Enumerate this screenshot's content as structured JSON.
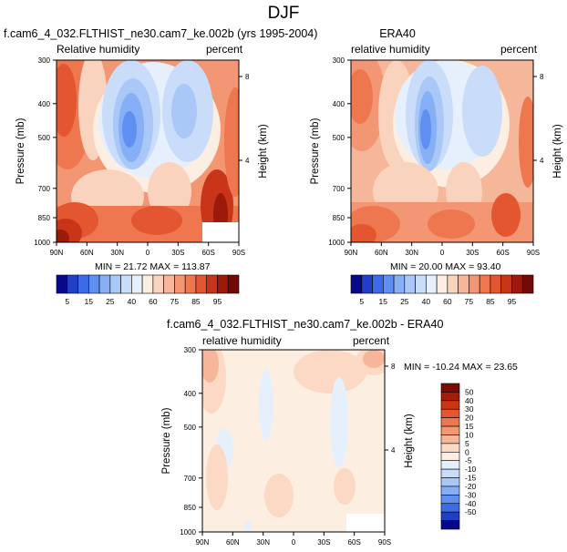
{
  "figure": {
    "season": "DJF"
  },
  "panels": [
    {
      "title": "f.cam6_4_032.FLTHIST_ne30.cam7_ke.002b (yrs 1995-2004)",
      "left_label": "Relative humidity",
      "right_label": "percent",
      "stats": "MIN = 21.72  MAX = 113.87"
    },
    {
      "title": "ERA40",
      "left_label": "relative humidity",
      "right_label": "percent",
      "stats": "MIN = 20.00  MAX = 93.40"
    },
    {
      "title": "f.cam6_4_032.FLTHIST_ne30.cam7_ke.002b - ERA40",
      "left_label": "relative humidity",
      "right_label": "percent",
      "stats": "MIN = -10.24  MAX = 23.65"
    }
  ],
  "chart_data": [
    {
      "type": "heatmap",
      "title": "f.cam6_4_032.FLTHIST_ne30.cam7_ke.002b (yrs 1995-2004)",
      "variable": "Relative humidity",
      "units": "percent",
      "xlabel": "",
      "ylabel": "Pressure (mb)",
      "y2label": "Height (km)",
      "x_ticks": [
        "90N",
        "60N",
        "30N",
        "0",
        "30S",
        "60S",
        "90S"
      ],
      "y_ticks": [
        300,
        400,
        500,
        700,
        850,
        1000
      ],
      "y_scale": "log",
      "ylim": [
        1000,
        300
      ],
      "y2_ticks": [
        4,
        8
      ],
      "min": 21.72,
      "max": 113.87
    },
    {
      "type": "heatmap",
      "title": "ERA40",
      "variable": "relative humidity",
      "units": "percent",
      "xlabel": "",
      "ylabel": "Pressure (mb)",
      "y2label": "Height (km)",
      "x_ticks": [
        "90N",
        "60N",
        "30N",
        "0",
        "30S",
        "60S",
        "90S"
      ],
      "y_ticks": [
        300,
        400,
        500,
        700,
        850,
        1000
      ],
      "y_scale": "log",
      "ylim": [
        1000,
        300
      ],
      "y2_ticks": [
        4,
        8
      ],
      "min": 20.0,
      "max": 93.4
    },
    {
      "type": "heatmap",
      "title": "f.cam6_4_032.FLTHIST_ne30.cam7_ke.002b - ERA40",
      "variable": "relative humidity",
      "units": "percent",
      "xlabel": "",
      "ylabel": "Pressure (mb)",
      "y2label": "Height (km)",
      "x_ticks": [
        "90N",
        "60N",
        "30N",
        "0",
        "30S",
        "60S",
        "90S"
      ],
      "y_ticks": [
        300,
        400,
        500,
        700,
        850,
        1000
      ],
      "y_scale": "log",
      "ylim": [
        1000,
        300
      ],
      "y2_ticks": [
        4,
        8
      ],
      "min": -10.24,
      "max": 23.65
    }
  ],
  "colorbars": {
    "rh": {
      "labels": [
        "5",
        "15",
        "25",
        "40",
        "60",
        "75",
        "85",
        "95"
      ],
      "colors": [
        "#08088a",
        "#1f3fc8",
        "#3b6be6",
        "#5f8ff0",
        "#86aff5",
        "#a9c8f7",
        "#c9dcf9",
        "#e6effc",
        "#fdeee2",
        "#f9d3bd",
        "#f6b699",
        "#f29673",
        "#ee774f",
        "#e45630",
        "#c93519",
        "#9c1a0a",
        "#740707"
      ]
    },
    "diff": {
      "labels": [
        "50",
        "40",
        "30",
        "20",
        "15",
        "10",
        "5",
        "0",
        "-5",
        "-10",
        "-15",
        "-20",
        "-30",
        "-40",
        "-50"
      ],
      "colors": [
        "#7a0b05",
        "#a81b0b",
        "#cc3414",
        "#e45630",
        "#ee774f",
        "#f29673",
        "#f6b699",
        "#fbd9c4",
        "#fdeee2",
        "#e6effc",
        "#c9dcf9",
        "#a9c8f7",
        "#86aff5",
        "#5f8ff0",
        "#3b6be6",
        "#1f3fc8",
        "#08088a"
      ]
    }
  }
}
